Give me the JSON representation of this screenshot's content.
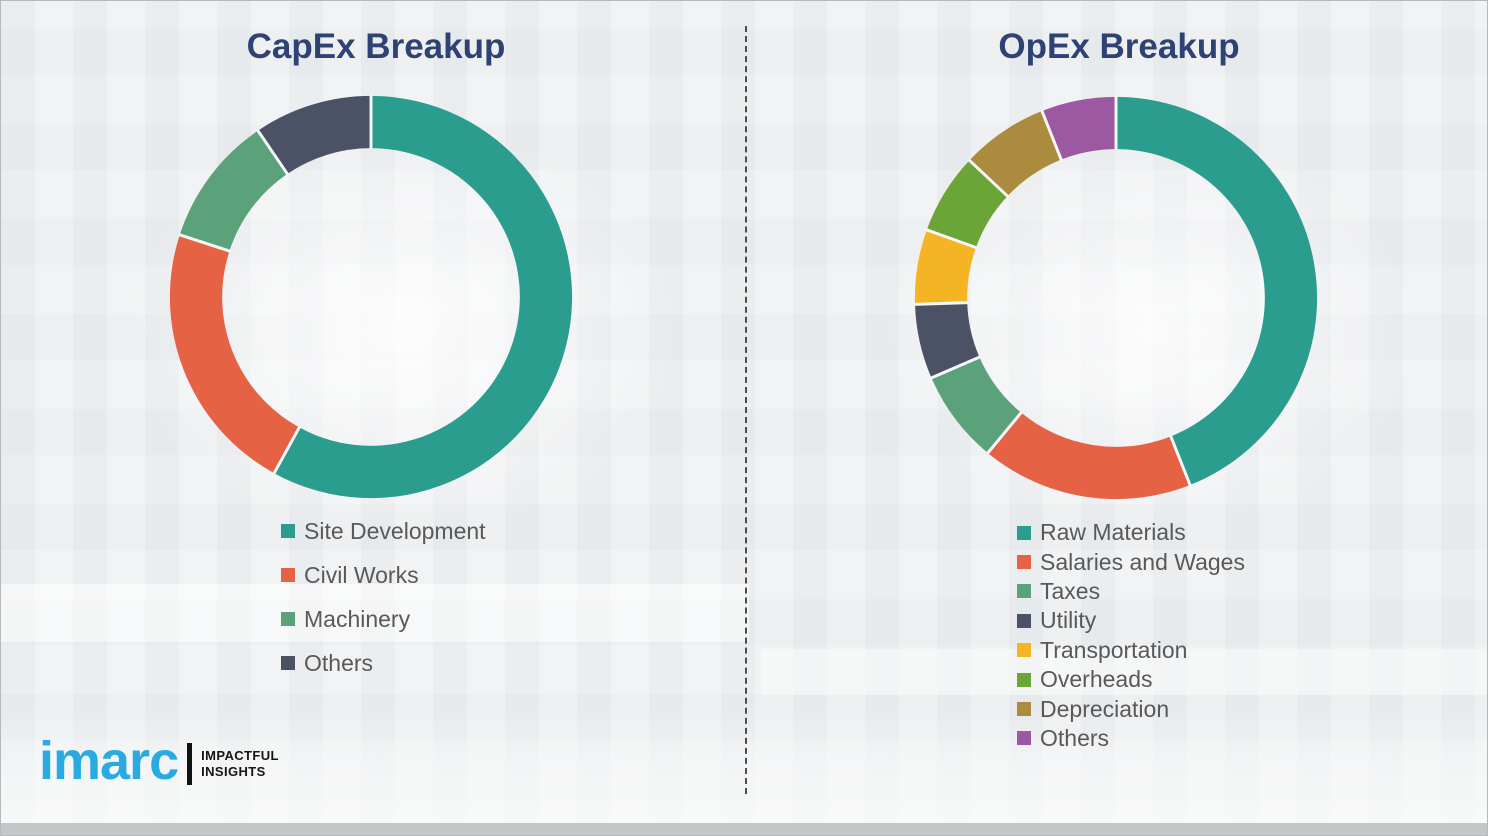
{
  "page": {
    "background_color": "#edeff1",
    "divider_style": "vertical-dashed",
    "divider_color": "#4d4d4d"
  },
  "logo": {
    "brand": "imarc",
    "brand_color": "#29abe2",
    "tagline_line1": "IMPACTFUL",
    "tagline_line2": "INSIGHTS"
  },
  "chart_data": [
    {
      "type": "pie",
      "subtype": "donut",
      "title": "CapEx Breakup",
      "categories": [
        "Site Development",
        "Civil Works",
        "Machinery",
        "Others"
      ],
      "values": [
        58,
        22,
        10.5,
        9.5
      ],
      "colors": [
        "#2a9d8f",
        "#e66244",
        "#5ba27b",
        "#4c5266"
      ],
      "start_angle_deg": 0,
      "direction": "clockwise",
      "legend_position": "bottom-left",
      "data_labels_shown": false
    },
    {
      "type": "pie",
      "subtype": "donut",
      "title": "OpEx Breakup",
      "categories": [
        "Raw Materials",
        "Salaries and Wages",
        "Taxes",
        "Utility",
        "Transportation",
        "Overheads",
        "Depreciation",
        "Others"
      ],
      "values": [
        44,
        17,
        7.5,
        6,
        6,
        6.5,
        7,
        6
      ],
      "colors": [
        "#2a9d8f",
        "#e66244",
        "#5ba27b",
        "#4c5266",
        "#f4b424",
        "#6ba437",
        "#ab8b3d",
        "#9c59a1"
      ],
      "start_angle_deg": 0,
      "direction": "clockwise",
      "legend_position": "bottom-left",
      "data_labels_shown": false
    }
  ]
}
